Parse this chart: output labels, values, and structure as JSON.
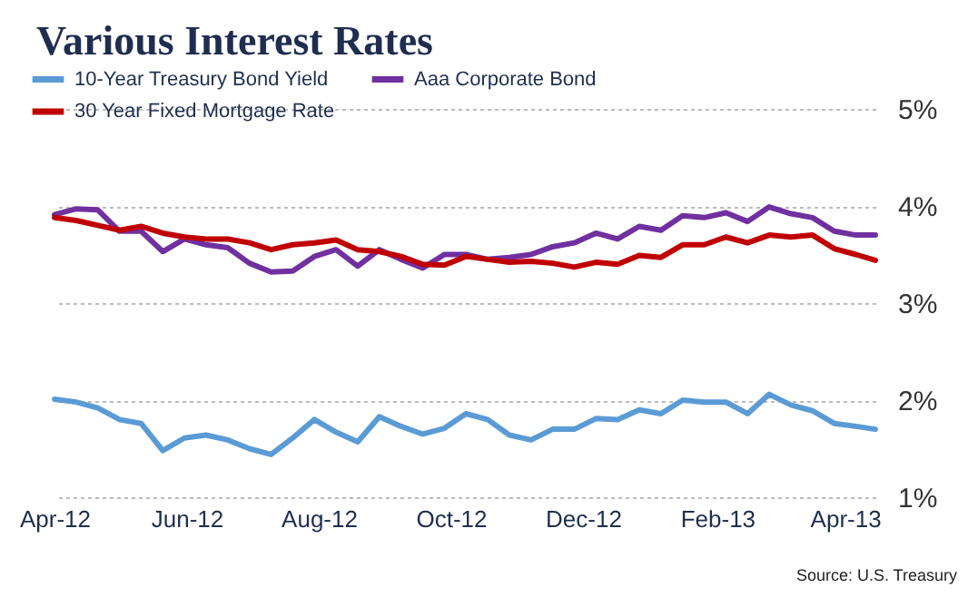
{
  "chart_data": {
    "type": "line",
    "title": "Various Interest Rates",
    "annotations": [
      "Source:  U.S. Treasury"
    ],
    "x": [
      "2012-04-01",
      "2012-04-11",
      "2012-04-21",
      "2012-05-01",
      "2012-05-11",
      "2012-05-21",
      "2012-05-31",
      "2012-06-10",
      "2012-06-20",
      "2012-06-30",
      "2012-07-10",
      "2012-07-20",
      "2012-07-30",
      "2012-08-09",
      "2012-08-19",
      "2012-08-29",
      "2012-09-08",
      "2012-09-18",
      "2012-09-28",
      "2012-10-08",
      "2012-10-18",
      "2012-10-28",
      "2012-11-07",
      "2012-11-17",
      "2012-11-27",
      "2012-12-07",
      "2012-12-17",
      "2012-12-27",
      "2013-01-06",
      "2013-01-16",
      "2013-01-26",
      "2013-02-05",
      "2013-02-15",
      "2013-02-25",
      "2013-03-07",
      "2013-03-17",
      "2013-03-27",
      "2013-04-06",
      "2013-04-15"
    ],
    "series": [
      {
        "name": "10-Year Treasury Bond Yield",
        "color": "#5b9bd5",
        "values": [
          2.01,
          1.98,
          1.92,
          1.8,
          1.76,
          1.48,
          1.61,
          1.64,
          1.59,
          1.5,
          1.44,
          1.61,
          1.8,
          1.67,
          1.57,
          1.83,
          1.73,
          1.65,
          1.71,
          1.86,
          1.8,
          1.64,
          1.59,
          1.7,
          1.7,
          1.81,
          1.8,
          1.9,
          1.86,
          2.0,
          1.98,
          1.98,
          1.86,
          2.06,
          1.95,
          1.89,
          1.76,
          1.73,
          1.7
        ]
      },
      {
        "name": "Aaa Corporate Bond",
        "color": "#7030a0",
        "values": [
          3.91,
          3.97,
          3.96,
          3.74,
          3.74,
          3.53,
          3.66,
          3.6,
          3.57,
          3.41,
          3.32,
          3.33,
          3.48,
          3.55,
          3.38,
          3.55,
          3.45,
          3.36,
          3.5,
          3.5,
          3.45,
          3.47,
          3.5,
          3.58,
          3.62,
          3.72,
          3.66,
          3.79,
          3.75,
          3.9,
          3.88,
          3.93,
          3.84,
          3.99,
          3.92,
          3.88,
          3.74,
          3.7,
          3.7
        ]
      },
      {
        "name": "30 Year Fixed Mortgage Rate",
        "color": "#c00000",
        "values": [
          3.88,
          3.85,
          3.8,
          3.75,
          3.79,
          3.72,
          3.68,
          3.66,
          3.66,
          3.62,
          3.55,
          3.6,
          3.62,
          3.65,
          3.55,
          3.53,
          3.48,
          3.4,
          3.39,
          3.48,
          3.45,
          3.42,
          3.43,
          3.41,
          3.37,
          3.42,
          3.4,
          3.49,
          3.47,
          3.6,
          3.6,
          3.68,
          3.62,
          3.7,
          3.68,
          3.7,
          3.56,
          3.5,
          3.44
        ]
      }
    ],
    "xlim": [
      "2012-04-01",
      "2013-04-15"
    ],
    "xticks": [
      {
        "value": "2012-04",
        "label": "Apr-12"
      },
      {
        "value": "2012-06",
        "label": "Jun-12"
      },
      {
        "value": "2012-08",
        "label": "Aug-12"
      },
      {
        "value": "2012-10",
        "label": "Oct-12"
      },
      {
        "value": "2012-12",
        "label": "Dec-12"
      },
      {
        "value": "2013-02",
        "label": "Feb-13"
      },
      {
        "value": "2013-04",
        "label": "Apr-13"
      }
    ],
    "ylim": [
      1,
      5
    ],
    "yticks": [
      {
        "value": 1,
        "label": "1%"
      },
      {
        "value": 2,
        "label": "2%"
      },
      {
        "value": 3,
        "label": "3%"
      },
      {
        "value": 4,
        "label": "4%"
      },
      {
        "value": 5,
        "label": "5%"
      }
    ],
    "grid": "y",
    "legend": "top left",
    "marker": "none",
    "line_style": "solid"
  }
}
